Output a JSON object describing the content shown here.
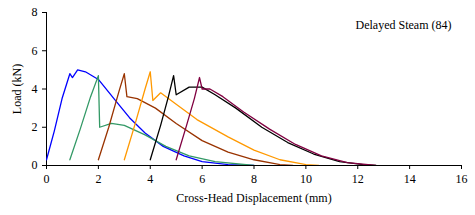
{
  "chart_data": {
    "type": "line",
    "xlabel": "Cross-Head Displacement (mm)",
    "ylabel": "Load (kN)",
    "annotations": [
      {
        "text": "Delayed Steam (84)"
      }
    ],
    "xlim": [
      0,
      16
    ],
    "xticks": [
      0,
      2,
      4,
      6,
      8,
      10,
      12,
      14,
      16
    ],
    "ylim": [
      0,
      8
    ],
    "yticks": [
      0,
      2,
      4,
      6,
      8
    ],
    "grid": false,
    "series": [
      {
        "color": "#0000ff",
        "x": [
          0,
          0.3,
          0.6,
          0.9,
          1.0,
          1.2,
          1.5,
          2.0,
          2.6,
          3.2,
          3.8,
          4.5,
          5.3,
          6.0,
          7.0,
          8.0
        ],
        "values": [
          0.3,
          1.8,
          3.5,
          4.8,
          4.6,
          5.0,
          4.9,
          4.5,
          3.5,
          2.5,
          1.7,
          1.0,
          0.5,
          0.2,
          0.05,
          0
        ]
      },
      {
        "color": "#339966",
        "x": [
          0.9,
          1.3,
          1.7,
          2.0,
          2.05,
          2.5,
          3.0,
          3.8,
          4.6,
          5.5,
          6.5,
          8.0
        ],
        "values": [
          0.3,
          1.9,
          3.6,
          4.7,
          2.0,
          2.2,
          2.1,
          1.6,
          1.0,
          0.5,
          0.2,
          0
        ]
      },
      {
        "color": "#993300",
        "x": [
          2.0,
          2.4,
          2.8,
          3.0,
          3.1,
          3.5,
          4.2,
          5.0,
          6.0,
          7.0,
          8.0,
          9.0,
          9.5
        ],
        "values": [
          0.3,
          2.0,
          3.9,
          4.8,
          3.6,
          3.5,
          3.0,
          2.2,
          1.3,
          0.7,
          0.3,
          0.05,
          0
        ]
      },
      {
        "color": "#ff9900",
        "x": [
          3.0,
          3.4,
          3.8,
          4.0,
          4.1,
          4.4,
          5.0,
          5.8,
          7.0,
          8.0,
          9.0,
          10.0,
          10.5
        ],
        "values": [
          0.3,
          2.1,
          4.0,
          4.9,
          3.4,
          3.8,
          3.2,
          2.4,
          1.5,
          0.8,
          0.3,
          0.05,
          0
        ]
      },
      {
        "color": "#000000",
        "x": [
          4.0,
          4.4,
          4.7,
          4.9,
          5.0,
          5.5,
          6.0,
          6.5,
          7.3,
          8.3,
          9.3,
          10.3,
          11.3,
          12.2,
          12.7
        ],
        "values": [
          0.3,
          2.1,
          3.6,
          4.7,
          3.7,
          4.1,
          4.1,
          3.7,
          3.0,
          2.0,
          1.2,
          0.6,
          0.2,
          0.05,
          0
        ]
      },
      {
        "color": "#800040",
        "x": [
          5.0,
          5.4,
          5.7,
          5.9,
          6.0,
          6.3,
          6.8,
          7.6,
          8.6,
          9.6,
          10.6,
          11.6,
          12.7
        ],
        "values": [
          0.3,
          2.1,
          3.5,
          4.6,
          4.0,
          4.0,
          3.6,
          2.8,
          1.9,
          1.1,
          0.5,
          0.15,
          0
        ]
      }
    ]
  }
}
